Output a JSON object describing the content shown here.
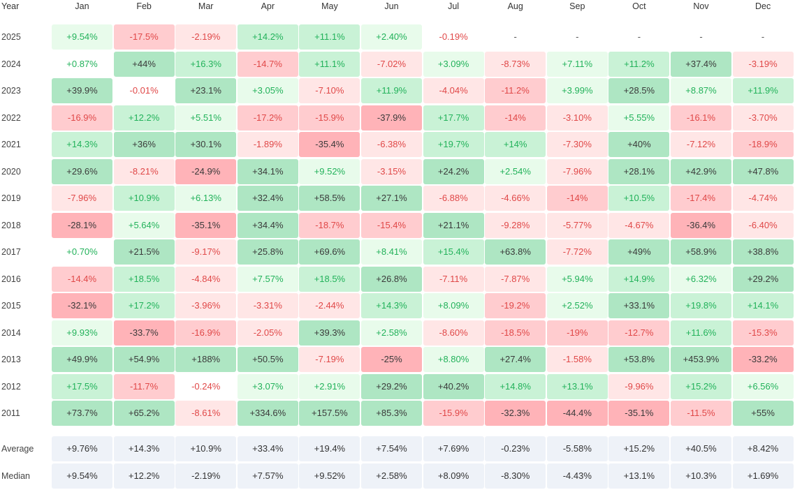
{
  "header": {
    "year_label": "Year",
    "months": [
      "Jan",
      "Feb",
      "Mar",
      "Apr",
      "May",
      "Jun",
      "Jul",
      "Aug",
      "Sep",
      "Oct",
      "Nov",
      "Dec"
    ]
  },
  "rows": [
    {
      "year": "2025",
      "values": [
        "+9.54%",
        "-17.5%",
        "-2.19%",
        "+14.2%",
        "+11.1%",
        "+2.40%",
        "-0.19%",
        "-",
        "-",
        "-",
        "-",
        "-"
      ]
    },
    {
      "year": "2024",
      "values": [
        "+0.87%",
        "+44%",
        "+16.3%",
        "-14.7%",
        "+11.1%",
        "-7.02%",
        "+3.09%",
        "-8.73%",
        "+7.11%",
        "+11.2%",
        "+37.4%",
        "-3.19%"
      ]
    },
    {
      "year": "2023",
      "values": [
        "+39.9%",
        "-0.01%",
        "+23.1%",
        "+3.05%",
        "-7.10%",
        "+11.9%",
        "-4.04%",
        "-11.2%",
        "+3.99%",
        "+28.5%",
        "+8.87%",
        "+11.9%"
      ]
    },
    {
      "year": "2022",
      "values": [
        "-16.9%",
        "+12.2%",
        "+5.51%",
        "-17.2%",
        "-15.9%",
        "-37.9%",
        "+17.7%",
        "-14%",
        "-3.10%",
        "+5.55%",
        "-16.1%",
        "-3.70%"
      ]
    },
    {
      "year": "2021",
      "values": [
        "+14.3%",
        "+36%",
        "+30.1%",
        "-1.89%",
        "-35.4%",
        "-6.38%",
        "+19.7%",
        "+14%",
        "-7.30%",
        "+40%",
        "-7.12%",
        "-18.9%"
      ]
    },
    {
      "year": "2020",
      "values": [
        "+29.6%",
        "-8.21%",
        "-24.9%",
        "+34.1%",
        "+9.52%",
        "-3.15%",
        "+24.2%",
        "+2.54%",
        "-7.96%",
        "+28.1%",
        "+42.9%",
        "+47.8%"
      ]
    },
    {
      "year": "2019",
      "values": [
        "-7.96%",
        "+10.9%",
        "+6.13%",
        "+32.4%",
        "+58.5%",
        "+27.1%",
        "-6.88%",
        "-4.66%",
        "-14%",
        "+10.5%",
        "-17.4%",
        "-4.74%"
      ]
    },
    {
      "year": "2018",
      "values": [
        "-28.1%",
        "+5.64%",
        "-35.1%",
        "+34.4%",
        "-18.7%",
        "-15.4%",
        "+21.1%",
        "-9.28%",
        "-5.77%",
        "-4.67%",
        "-36.4%",
        "-6.40%"
      ]
    },
    {
      "year": "2017",
      "values": [
        "+0.70%",
        "+21.5%",
        "-9.17%",
        "+25.8%",
        "+69.6%",
        "+8.41%",
        "+15.4%",
        "+63.8%",
        "-7.72%",
        "+49%",
        "+58.9%",
        "+38.8%"
      ]
    },
    {
      "year": "2016",
      "values": [
        "-14.4%",
        "+18.5%",
        "-4.84%",
        "+7.57%",
        "+18.5%",
        "+26.8%",
        "-7.11%",
        "-7.87%",
        "+5.94%",
        "+14.9%",
        "+6.32%",
        "+29.2%"
      ]
    },
    {
      "year": "2015",
      "values": [
        "-32.1%",
        "+17.2%",
        "-3.96%",
        "-3.31%",
        "-2.44%",
        "+14.3%",
        "+8.09%",
        "-19.2%",
        "+2.52%",
        "+33.1%",
        "+19.8%",
        "+14.1%"
      ]
    },
    {
      "year": "2014",
      "values": [
        "+9.93%",
        "-33.7%",
        "-16.9%",
        "-2.05%",
        "+39.3%",
        "+2.58%",
        "-8.60%",
        "-18.5%",
        "-19%",
        "-12.7%",
        "+11.6%",
        "-15.3%"
      ]
    },
    {
      "year": "2013",
      "values": [
        "+49.9%",
        "+54.9%",
        "+188%",
        "+50.5%",
        "-7.19%",
        "-25%",
        "+8.80%",
        "+27.4%",
        "-1.58%",
        "+53.8%",
        "+453.9%",
        "-33.2%"
      ]
    },
    {
      "year": "2012",
      "values": [
        "+17.5%",
        "-11.7%",
        "-0.24%",
        "+3.07%",
        "+2.91%",
        "+29.2%",
        "+40.2%",
        "+14.8%",
        "+13.1%",
        "-9.96%",
        "+15.2%",
        "+6.56%"
      ]
    },
    {
      "year": "2011",
      "values": [
        "+73.7%",
        "+65.2%",
        "-8.61%",
        "+334.6%",
        "+157.5%",
        "+85.3%",
        "-15.9%",
        "-32.3%",
        "-44.4%",
        "-35.1%",
        "-11.5%",
        "+55%"
      ]
    }
  ],
  "summary": [
    {
      "label": "Average",
      "values": [
        "+9.76%",
        "+14.3%",
        "+10.9%",
        "+33.4%",
        "+19.4%",
        "+7.54%",
        "+7.69%",
        "-0.23%",
        "-5.58%",
        "+15.2%",
        "+40.5%",
        "+8.42%"
      ]
    },
    {
      "label": "Median",
      "values": [
        "+9.54%",
        "+12.2%",
        "-2.19%",
        "+7.57%",
        "+9.52%",
        "+2.58%",
        "+8.09%",
        "-8.30%",
        "-4.43%",
        "+13.1%",
        "+10.3%",
        "+1.69%"
      ]
    }
  ],
  "colors": {
    "pos_text_light": "#22b25a",
    "pos_text_dark": "#3a3a3a",
    "neg_text_light": "#e04848",
    "neg_text_dark": "#3a3a3a",
    "pos_bg_1": "#e8fbeb",
    "pos_bg_2": "#c9f2d6",
    "pos_bg_3": "#aee6c3",
    "neg_bg_1": "#ffe6e6",
    "neg_bg_2": "#ffcccf",
    "neg_bg_3": "#ffb3b8",
    "summary_bg": "#eef2f8",
    "summary_text": "#333333"
  }
}
